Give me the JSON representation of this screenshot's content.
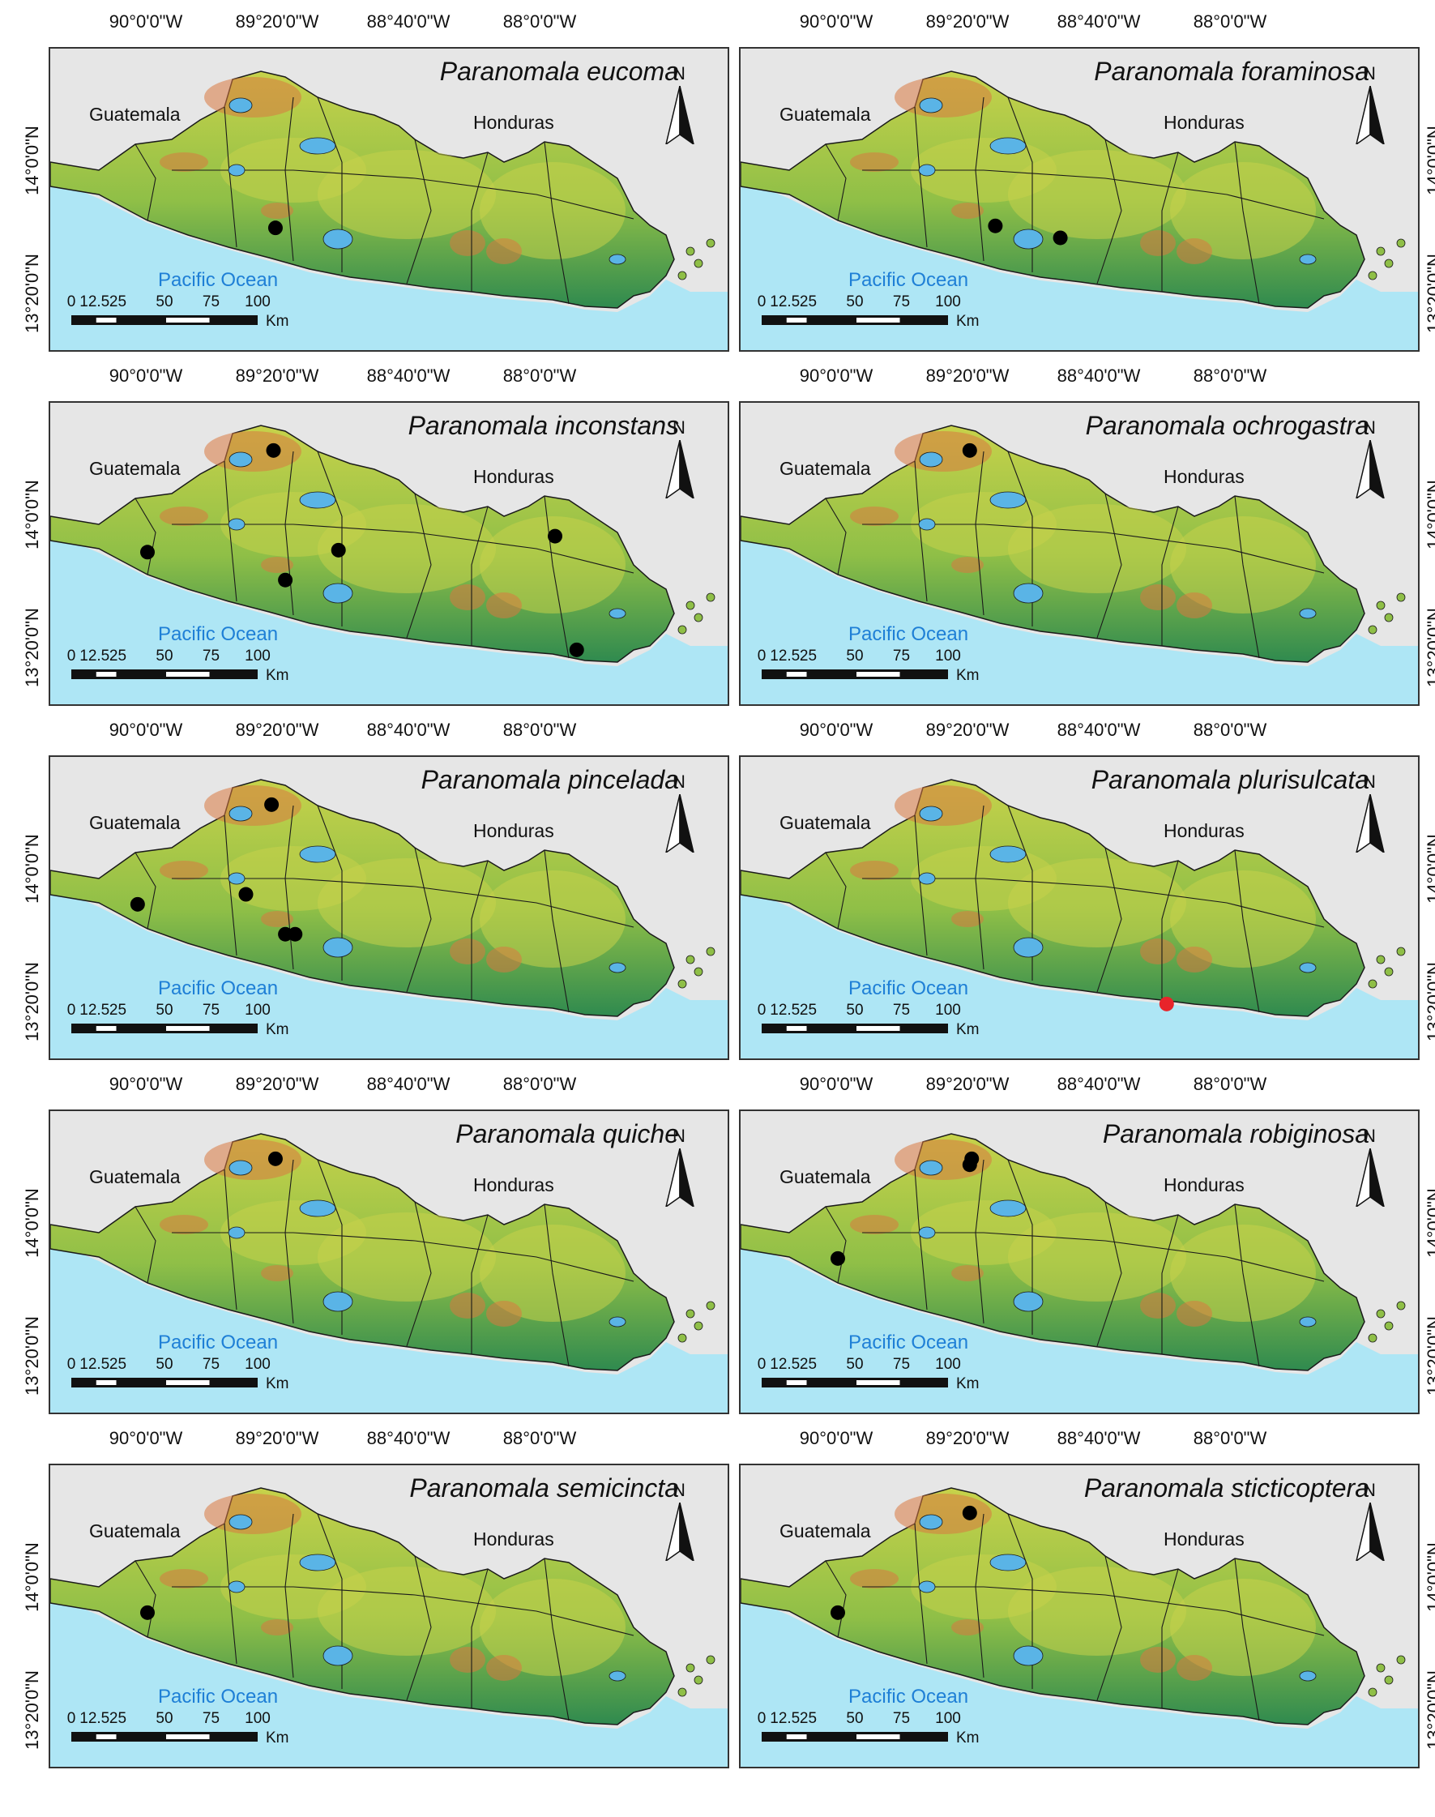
{
  "axis_labels": {
    "longitude": [
      "90°0'0\"W",
      "89°20'0\"W",
      "88°40'0\"W",
      "88°0'0\"W"
    ],
    "latitude": [
      "14°0'0\"N",
      "13°20'0\"N"
    ]
  },
  "map_labels": {
    "country_west": "Guatemala",
    "country_east": "Honduras",
    "ocean": "Pacific Ocean",
    "north_arrow": "N"
  },
  "scale_bar": {
    "ticks": [
      "0",
      "12.5",
      "25",
      "50",
      "75",
      "100"
    ],
    "unit": "Km"
  },
  "colors": {
    "ocean": "#aee6f5",
    "land_outside": "#e6e6e6",
    "terrain_low": "#2f8a4f",
    "terrain_mid": "#c7d24a",
    "terrain_high": "#d9783f",
    "lake": "#5ab4e6",
    "record_black": "#000000",
    "record_red": "#e8242a"
  },
  "panels": [
    {
      "species": "Paranomala eucoma",
      "records": [
        {
          "lon": -89.35,
          "lat": 13.67,
          "color": "black"
        }
      ]
    },
    {
      "species": "Paranomala foraminosa",
      "records": [
        {
          "lon": -89.2,
          "lat": 13.68,
          "color": "black"
        },
        {
          "lon": -88.87,
          "lat": 13.62,
          "color": "black"
        }
      ]
    },
    {
      "species": "Paranomala inconstans",
      "records": [
        {
          "lon": -89.36,
          "lat": 14.33,
          "color": "black"
        },
        {
          "lon": -90.0,
          "lat": 13.82,
          "color": "black"
        },
        {
          "lon": -89.3,
          "lat": 13.68,
          "color": "black"
        },
        {
          "lon": -89.03,
          "lat": 13.83,
          "color": "black"
        },
        {
          "lon": -87.93,
          "lat": 13.9,
          "color": "black"
        },
        {
          "lon": -87.82,
          "lat": 13.33,
          "color": "black"
        }
      ]
    },
    {
      "species": "Paranomala ochrogastra",
      "records": [
        {
          "lon": -89.33,
          "lat": 14.33,
          "color": "black"
        }
      ]
    },
    {
      "species": "Paranomala pincelada",
      "records": [
        {
          "lon": -89.37,
          "lat": 14.33,
          "color": "black"
        },
        {
          "lon": -90.05,
          "lat": 13.83,
          "color": "black"
        },
        {
          "lon": -89.5,
          "lat": 13.88,
          "color": "black"
        },
        {
          "lon": -89.3,
          "lat": 13.68,
          "color": "black"
        },
        {
          "lon": -89.25,
          "lat": 13.68,
          "color": "black"
        }
      ]
    },
    {
      "species": "Paranomala plurisulcata",
      "records": [
        {
          "lon": -88.33,
          "lat": 13.33,
          "color": "red"
        }
      ]
    },
    {
      "species": "Paranomala quiche",
      "records": [
        {
          "lon": -89.35,
          "lat": 14.33,
          "color": "black"
        }
      ]
    },
    {
      "species": "Paranomala robiginosa",
      "records": [
        {
          "lon": -89.32,
          "lat": 14.33,
          "color": "black"
        },
        {
          "lon": -89.33,
          "lat": 14.3,
          "color": "black"
        },
        {
          "lon": -90.0,
          "lat": 13.83,
          "color": "black"
        }
      ]
    },
    {
      "species": "Paranomala semicincta",
      "records": [
        {
          "lon": -90.0,
          "lat": 13.83,
          "color": "black"
        }
      ]
    },
    {
      "species": "Paranomala sticticoptera",
      "records": [
        {
          "lon": -89.33,
          "lat": 14.33,
          "color": "black"
        },
        {
          "lon": -90.0,
          "lat": 13.83,
          "color": "black"
        }
      ]
    }
  ]
}
